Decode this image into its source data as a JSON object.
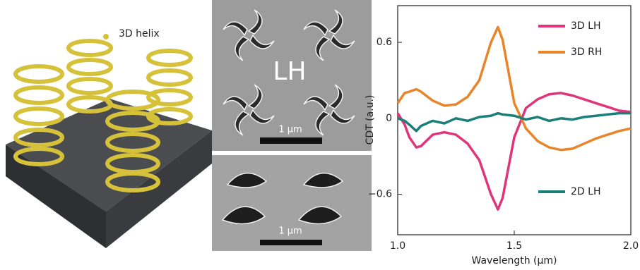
{
  "figure": {
    "helix_label": "3D helix",
    "sem_top_label": "LH",
    "sem_top_scale": "1 μm",
    "sem_bottom_scale": "1 μm"
  },
  "chart_data": {
    "type": "line",
    "x_label": "Wavelength (μm)",
    "y_label": "CDT (a.u.)",
    "x": [
      1.0,
      1.03,
      1.05,
      1.08,
      1.1,
      1.15,
      1.2,
      1.25,
      1.3,
      1.35,
      1.4,
      1.43,
      1.45,
      1.5,
      1.55,
      1.6,
      1.65,
      1.7,
      1.75,
      1.8,
      1.85,
      1.9,
      1.95,
      2.0
    ],
    "series": [
      {
        "name": "3D LH",
        "color": "#e0357a",
        "values": [
          0.04,
          -0.05,
          -0.15,
          -0.23,
          -0.22,
          -0.13,
          -0.11,
          -0.13,
          -0.2,
          -0.33,
          -0.6,
          -0.72,
          -0.63,
          -0.15,
          0.08,
          0.15,
          0.19,
          0.2,
          0.18,
          0.15,
          0.12,
          0.09,
          0.06,
          0.05
        ]
      },
      {
        "name": "3D RH",
        "color": "#e8852a",
        "values": [
          0.12,
          0.2,
          0.21,
          0.23,
          0.21,
          0.14,
          0.1,
          0.11,
          0.17,
          0.3,
          0.6,
          0.72,
          0.62,
          0.12,
          -0.08,
          -0.18,
          -0.23,
          -0.25,
          -0.24,
          -0.2,
          -0.16,
          -0.13,
          -0.1,
          -0.08
        ]
      },
      {
        "name": "2D LH",
        "color": "#1a7f7a",
        "values": [
          0,
          -0.02,
          -0.05,
          -0.1,
          -0.06,
          -0.02,
          -0.04,
          0,
          -0.02,
          0.01,
          0.02,
          0.04,
          0.03,
          0.02,
          -0.01,
          0.01,
          -0.02,
          0,
          -0.01,
          0.01,
          0.02,
          0.03,
          0.04,
          0.04
        ]
      }
    ],
    "xlim": [
      1.0,
      2.0
    ],
    "ylim": [
      -0.92,
      0.89
    ],
    "xticks": [
      {
        "value": 1,
        "label": "1.0"
      },
      1.5,
      {
        "value": 2,
        "label": "2.0"
      }
    ],
    "yticks": [
      {
        "value": -0.6,
        "label": "−0.6"
      },
      0,
      0.6
    ]
  }
}
